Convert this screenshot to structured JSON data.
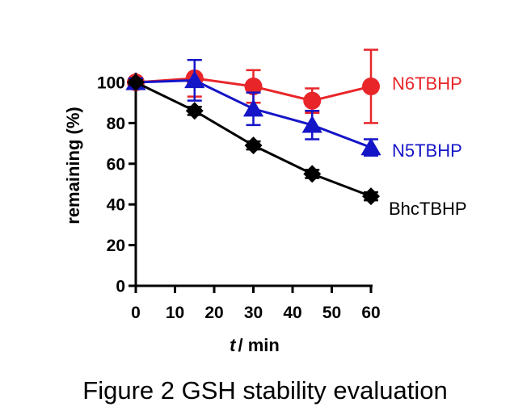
{
  "caption": "Figure 2 GSH stability evaluation",
  "chart_data": {
    "type": "line",
    "title": "",
    "xlabel_var": "t",
    "xlabel_unit": "/ min",
    "ylabel": "remaining (%)",
    "xlim": [
      0,
      60
    ],
    "ylim": [
      0,
      100
    ],
    "xticks": [
      0,
      10,
      20,
      30,
      40,
      50,
      60
    ],
    "yticks": [
      0,
      20,
      40,
      60,
      80,
      100
    ],
    "x": [
      0,
      15,
      30,
      45,
      60
    ],
    "grid": false,
    "legend": "inline-right",
    "series": [
      {
        "name": "N6TBHP",
        "color": "#e8262a",
        "marker": "circle",
        "values": [
          100,
          102,
          98,
          91,
          98
        ],
        "errors": [
          2,
          9,
          8,
          6,
          18
        ]
      },
      {
        "name": "N5TBHP",
        "color": "#1515c8",
        "marker": "triangle",
        "values": [
          100,
          101,
          87,
          79,
          68
        ],
        "errors": [
          2,
          10,
          8,
          7,
          4
        ]
      },
      {
        "name": "BhcTBHP",
        "color": "#000000",
        "marker": "diamond",
        "values": [
          100,
          86,
          69,
          55,
          44
        ],
        "errors": [
          1,
          2,
          2,
          2,
          2
        ]
      }
    ]
  }
}
